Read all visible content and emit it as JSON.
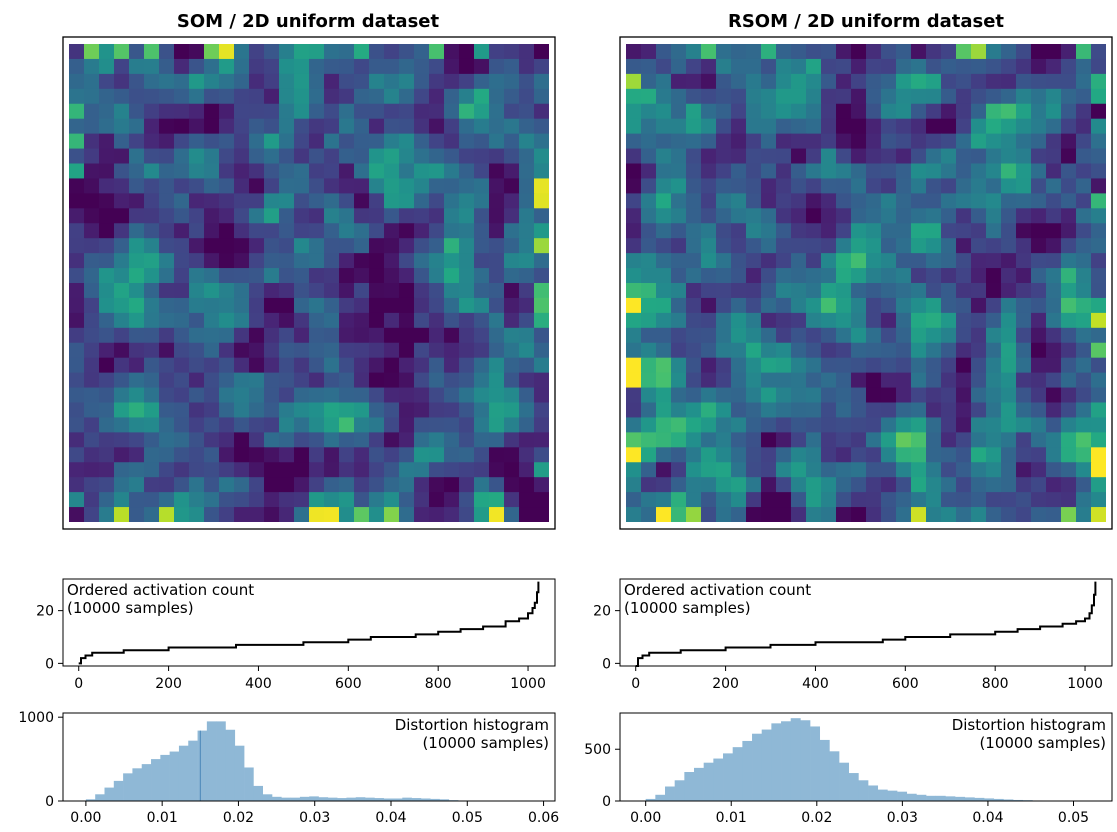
{
  "chart_data": [
    {
      "type": "heatmap",
      "title": "SOM / 2D uniform dataset",
      "grid": {
        "rows": 32,
        "cols": 32
      },
      "value_range": [
        0,
        1
      ],
      "colormap": "viridis",
      "seed": 7,
      "mean_level": 0.27,
      "bright_edge_spots": true
    },
    {
      "type": "line",
      "annotation": [
        "Ordered activation count",
        "(10000 samples)"
      ],
      "xlim": [
        -35,
        1060
      ],
      "ylim": [
        -1,
        32
      ],
      "xticks": [
        0,
        200,
        400,
        600,
        800,
        1000
      ],
      "yticks": [
        0,
        20
      ],
      "series": {
        "x": [
          0,
          5,
          15,
          30,
          60,
          100,
          150,
          200,
          250,
          300,
          350,
          400,
          450,
          500,
          550,
          600,
          650,
          700,
          750,
          800,
          850,
          900,
          950,
          980,
          1000,
          1010,
          1015,
          1020,
          1023
        ],
        "y": [
          0,
          2,
          3,
          4,
          4,
          5,
          5,
          6,
          6,
          6,
          7,
          7,
          7,
          8,
          8,
          9,
          10,
          10,
          11,
          12,
          13,
          14,
          16,
          17,
          19,
          21,
          23,
          27,
          31
        ]
      }
    },
    {
      "type": "bar",
      "annotation": [
        "Distortion histogram",
        "(10000 samples)"
      ],
      "xlim": [
        -0.003,
        0.0615
      ],
      "ylim": [
        0,
        1050
      ],
      "xticks": [
        "0.00",
        "0.01",
        "0.02",
        "0.03",
        "0.04",
        "0.05",
        "0.06"
      ],
      "yticks": [
        0,
        1000
      ],
      "bin_start": 0.0,
      "bin_width": 0.00122,
      "values": [
        20,
        80,
        160,
        240,
        330,
        390,
        440,
        500,
        550,
        590,
        660,
        720,
        840,
        950,
        950,
        850,
        660,
        400,
        180,
        80,
        50,
        40,
        40,
        50,
        55,
        45,
        40,
        35,
        40,
        45,
        40,
        35,
        30,
        30,
        40,
        35,
        30,
        25,
        20,
        10,
        5,
        3,
        2,
        2,
        1,
        1,
        1,
        1
      ],
      "vline": 0.015
    },
    {
      "type": "heatmap",
      "title": "RSOM / 2D uniform dataset",
      "grid": {
        "rows": 32,
        "cols": 32
      },
      "value_range": [
        0,
        1
      ],
      "colormap": "viridis",
      "seed": 23,
      "mean_level": 0.32,
      "bright_edge_spots": true
    },
    {
      "type": "line",
      "annotation": [
        "Ordered activation count",
        "(10000 samples)"
      ],
      "xlim": [
        -35,
        1060
      ],
      "ylim": [
        -1,
        32
      ],
      "xticks": [
        0,
        200,
        400,
        600,
        800,
        1000
      ],
      "yticks": [
        0,
        20
      ],
      "series": {
        "x": [
          0,
          5,
          15,
          30,
          60,
          100,
          150,
          200,
          250,
          300,
          350,
          400,
          450,
          500,
          550,
          600,
          650,
          700,
          750,
          800,
          850,
          900,
          950,
          980,
          1000,
          1010,
          1015,
          1020,
          1023
        ],
        "y": [
          -1,
          2,
          3,
          4,
          4,
          5,
          5,
          6,
          6,
          7,
          7,
          8,
          8,
          8,
          9,
          10,
          10,
          11,
          11,
          12,
          13,
          14,
          15,
          16,
          17,
          19,
          22,
          26,
          31
        ]
      }
    },
    {
      "type": "bar",
      "annotation": [
        "Distortion histogram",
        "(10000 samples)"
      ],
      "xlim": [
        -0.003,
        0.0545
      ],
      "ylim": [
        0,
        850
      ],
      "xticks": [
        "0.00",
        "0.01",
        "0.02",
        "0.03",
        "0.04",
        "0.05"
      ],
      "yticks": [
        0,
        500
      ],
      "bin_start": 0.0,
      "bin_width": 0.00113,
      "values": [
        20,
        60,
        140,
        200,
        280,
        320,
        370,
        410,
        460,
        520,
        580,
        650,
        690,
        750,
        770,
        800,
        780,
        720,
        590,
        480,
        370,
        270,
        200,
        150,
        110,
        100,
        90,
        70,
        60,
        50,
        50,
        45,
        40,
        35,
        30,
        25,
        20,
        15,
        10,
        8,
        5,
        3,
        2,
        2
      ]
    }
  ]
}
